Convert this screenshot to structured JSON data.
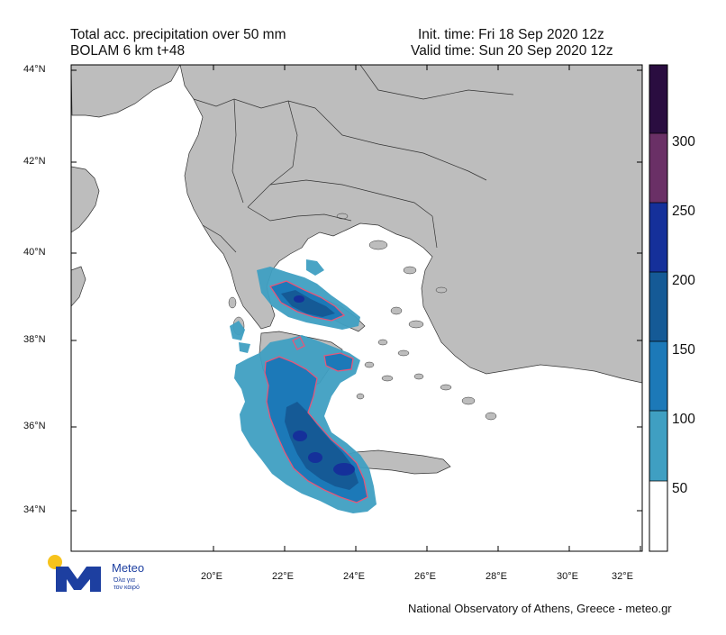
{
  "header": {
    "title_line1": "Total acc. precipitation over 50 mm",
    "title_line2": "BOLAM 6 km t+48",
    "init_time": "Init. time: Fri 18 Sep 2020 12z",
    "valid_time": "Valid time: Sun 20 Sep 2020 12z"
  },
  "map": {
    "lat_labels": [
      "44°N",
      "42°N",
      "40°N",
      "38°N",
      "36°N",
      "34°N"
    ],
    "lon_labels": [
      "20°E",
      "22°E",
      "24°E",
      "26°E",
      "28°E",
      "30°E",
      "32°E"
    ],
    "colors": {
      "land": "#bdbdbd",
      "sea": "#ffffff",
      "border": "#333333",
      "contour_line": "#e4577a"
    }
  },
  "colorbar": {
    "labels": [
      "50",
      "100",
      "150",
      "200",
      "250",
      "300"
    ],
    "bins": [
      {
        "color": "#ffffff"
      },
      {
        "color": "#3f9fc2"
      },
      {
        "color": "#1c79b8"
      },
      {
        "color": "#155a96"
      },
      {
        "color": "#15309a"
      },
      {
        "color": "#6a3066"
      },
      {
        "color": "#2a0d40"
      }
    ]
  },
  "logo": {
    "name": "Meteo",
    "tagline_line1": "Όλα για",
    "tagline_line2": "τον καιρό",
    "colors": {
      "sun": "#f7c31c",
      "mark": "#1d3fa0"
    }
  },
  "footer": {
    "credit": "National Observatory of Athens, Greece - meteo.gr"
  }
}
